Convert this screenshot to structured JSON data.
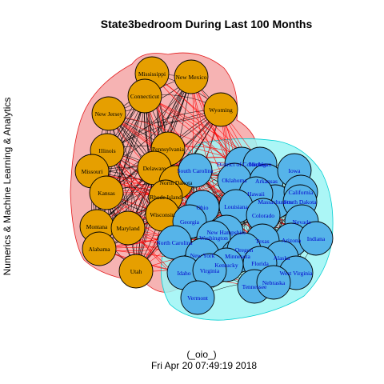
{
  "plot": {
    "title": "State3bedroom During Last 100 Months",
    "ylabel": "Numerics & Machine Learning & Analytics",
    "sublabel": "(_oio_)",
    "timestamp": "Fri Apr 20 07:49:19 2018"
  },
  "colors": {
    "group1_fill": "#E69F00",
    "group2_fill": "#56B4E9",
    "group1_hull": "#F4A6A6",
    "group1_hull_stroke": "#E31A1C",
    "group2_hull": "#9CF5F5",
    "group2_hull_stroke": "#00CED1",
    "label_color": "#0000CC",
    "intra_edge": "#000000",
    "inter_edge": "#FF0000"
  },
  "groups": [
    {
      "name": "group1",
      "nodes": [
        "Mississippi",
        "New Mexico",
        "Connecticut",
        "New Jersey",
        "Wyoming",
        "Pennsylvania",
        "Illinois",
        "Missouri",
        "Delaware",
        "North Dakota",
        "Kansas",
        "Rhode Island",
        "Wisconsin",
        "Montana",
        "Maryland",
        "Alabama",
        "Utah"
      ]
    },
    {
      "name": "group2",
      "nodes": [
        "South Carolina",
        "District of Columbia",
        "Michigan",
        "Oklahoma",
        "Arkansas",
        "Iowa",
        "Massachusetts",
        "California",
        "Hawaii",
        "South Dakota",
        "Louisiana",
        "Ohio",
        "Colorado",
        "Nevada",
        "Georgia",
        "New Hampshire",
        "Arizona",
        "Indiana",
        "Washington",
        "Texas",
        "Minnesota",
        "North Carolina",
        "Oregon",
        "New York",
        "Alaska",
        "Kentucky",
        "Florida",
        "West Virginia",
        "Idaho",
        "Virginia",
        "Tennessee",
        "Nebraska",
        "Vermont"
      ]
    }
  ]
}
